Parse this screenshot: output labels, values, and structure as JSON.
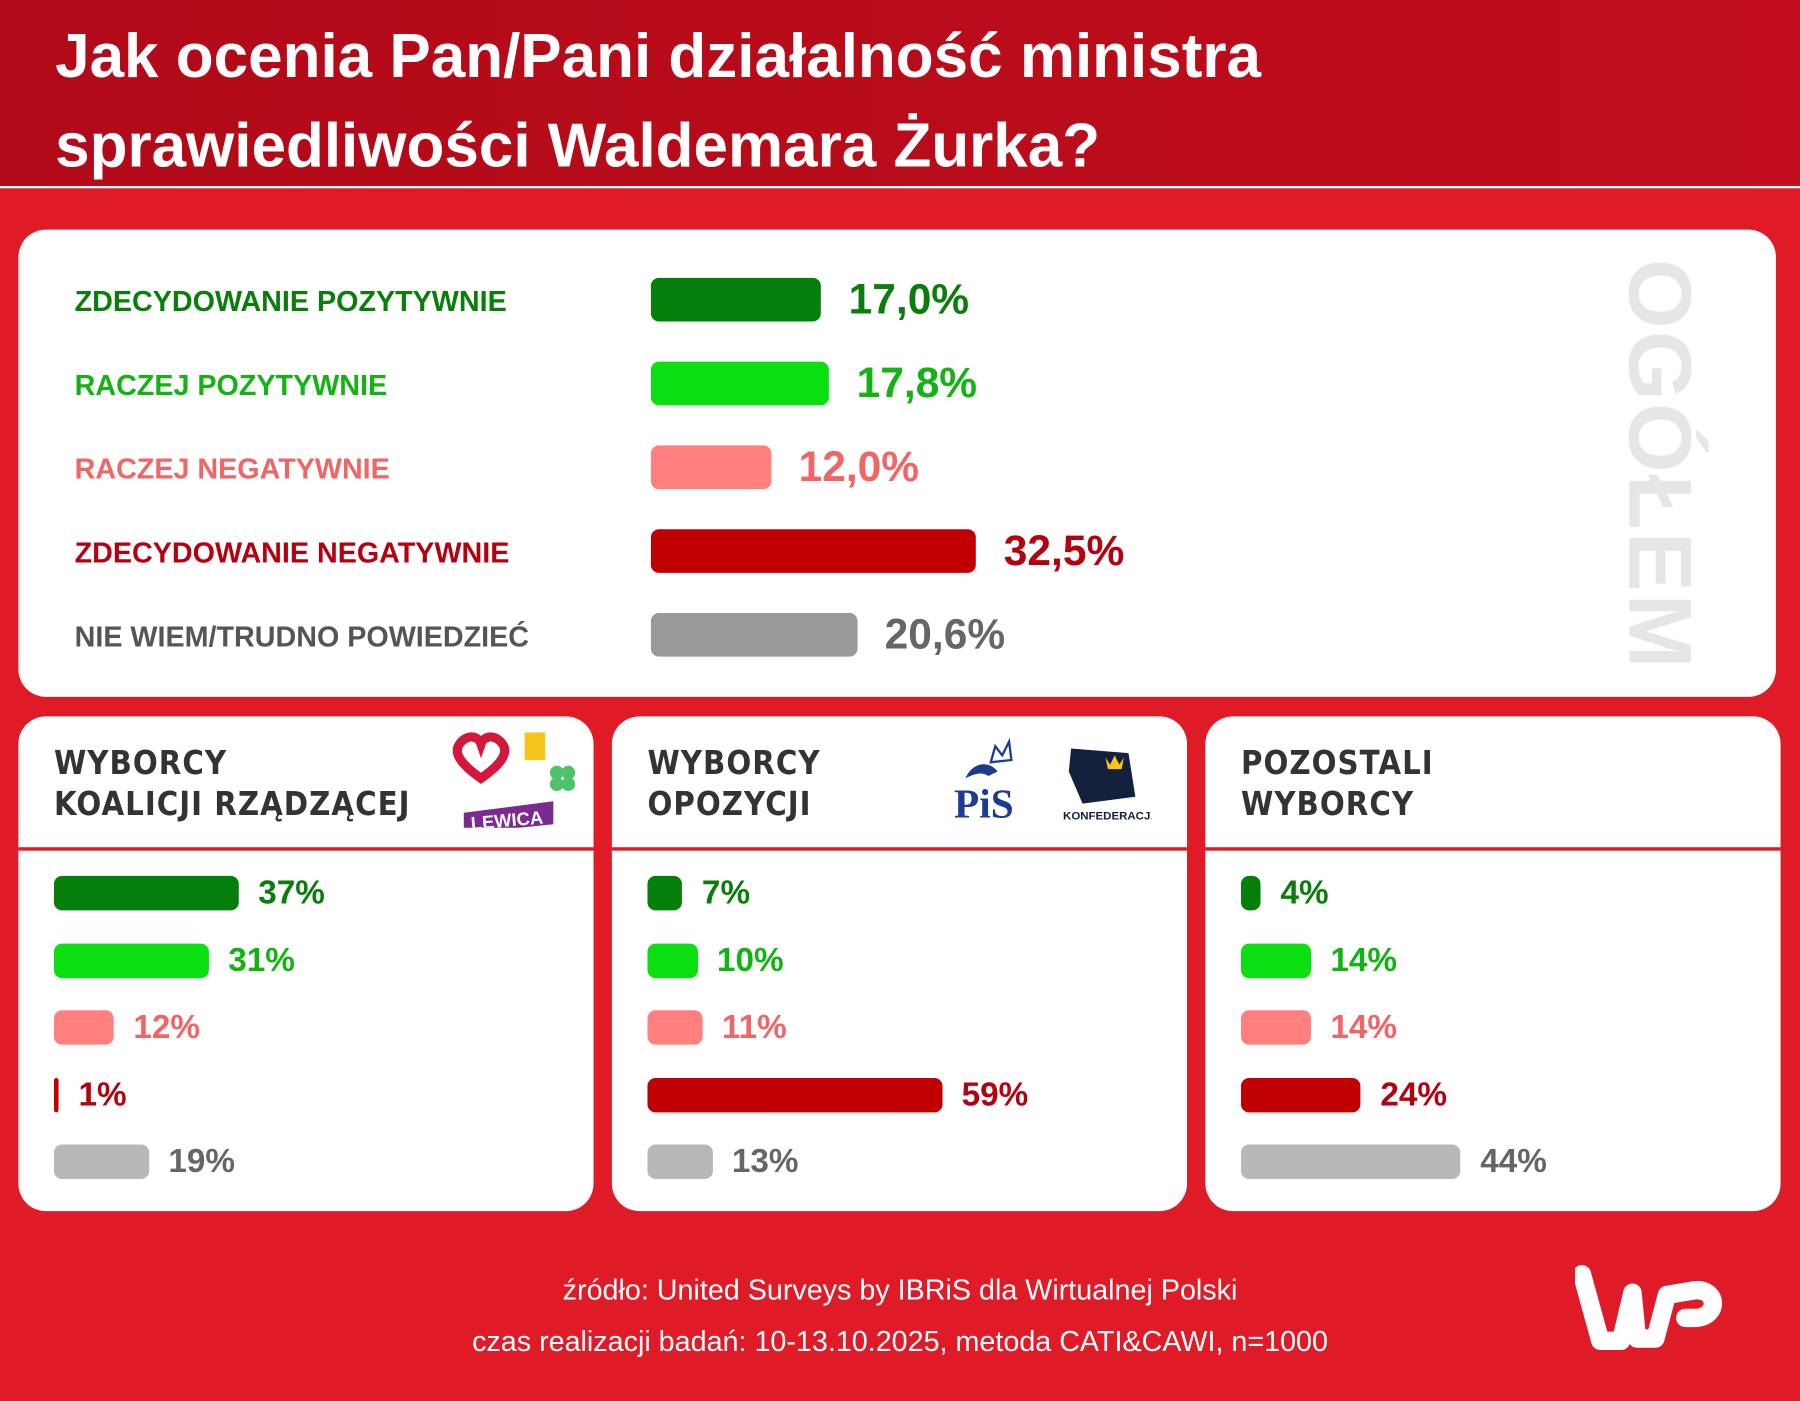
{
  "title_lines": [
    "Jak ocenia Pan/Pani działalność ministra",
    "sprawiedliwości Waldemara Żurka?"
  ],
  "colors": {
    "strong_pos": "#067f0a",
    "pos": "#0ae010",
    "neg": "#ff7f7f",
    "strong_neg": "#c00000",
    "dont_know": "#999999",
    "dont_know_light": "#b8b8b8"
  },
  "chart_data": [
    {
      "type": "bar",
      "title": "OGÓŁEM",
      "categories": [
        "ZDECYDOWANIE POZYTYWNIE",
        "RACZEJ POZYTYWNIE",
        "RACZEJ NEGATYWNIE",
        "ZDECYDOWANIE NEGATYWNIE",
        "NIE WIEM/TRUDNO POWIEDZIEĆ"
      ],
      "values": [
        17.0,
        17.8,
        12.0,
        32.5,
        20.6
      ],
      "labels": [
        "17,0%",
        "17,8%",
        "12,0%",
        "32,5%",
        "20,6%"
      ],
      "unit": "%"
    },
    {
      "type": "bar",
      "title": [
        "WYBORCY",
        "KOALICJI RZĄDZĄCEJ"
      ],
      "categories": [
        "ZDECYDOWANIE POZYTYWNIE",
        "RACZEJ POZYTYWNIE",
        "RACZEJ NEGATYWNIE",
        "ZDECYDOWANIE NEGATYWNIE",
        "NIE WIEM/TRUDNO POWIEDZIEĆ"
      ],
      "values": [
        37,
        31,
        12,
        1,
        19
      ],
      "labels": [
        "37%",
        "31%",
        "12%",
        "1%",
        "19%"
      ],
      "logos": [
        "LEWICA",
        "2050"
      ]
    },
    {
      "type": "bar",
      "title": [
        "WYBORCY",
        "OPOZYCJI"
      ],
      "categories": [
        "ZDECYDOWANIE POZYTYWNIE",
        "RACZEJ POZYTYWNIE",
        "RACZEJ NEGATYWNIE",
        "ZDECYDOWANIE NEGATYWNIE",
        "NIE WIEM/TRUDNO POWIEDZIEĆ"
      ],
      "values": [
        7,
        10,
        11,
        59,
        13
      ],
      "labels": [
        "7%",
        "10%",
        "11%",
        "59%",
        "13%"
      ],
      "logos": [
        "PiS",
        "KONFEDERACJA"
      ]
    },
    {
      "type": "bar",
      "title": [
        "POZOSTALI",
        "WYBORCY"
      ],
      "categories": [
        "ZDECYDOWANIE POZYTYWNIE",
        "RACZEJ POZYTYWNIE",
        "RACZEJ NEGATYWNIE",
        "ZDECYDOWANIE NEGATYWNIE",
        "NIE WIEM/TRUDNO POWIEDZIEĆ"
      ],
      "values": [
        4,
        14,
        14,
        24,
        44
      ],
      "labels": [
        "4%",
        "14%",
        "14%",
        "24%",
        "44%"
      ]
    }
  ],
  "footer": {
    "source": "źródło: United Surveys by IBRiS dla Wirtualnej Polski",
    "method": "czas realizacji badań: 10-13.10.2025, metoda CATI&CAWI, n=1000"
  },
  "brand": "WP"
}
